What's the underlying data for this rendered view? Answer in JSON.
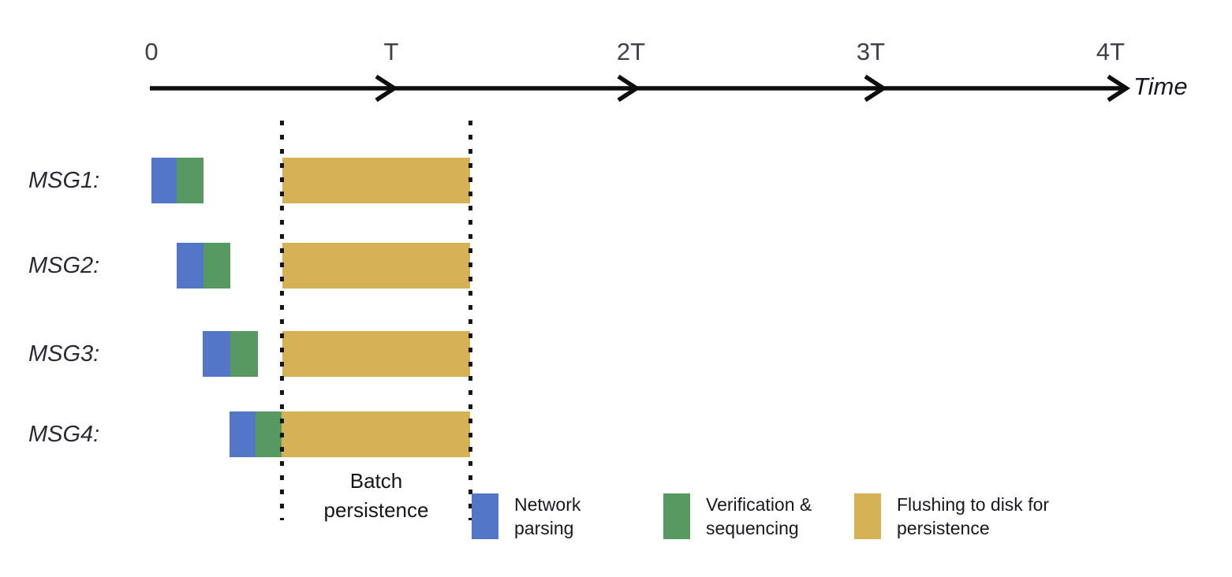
{
  "figure": {
    "title_meaning": "Batch persistence timing diagram for four messages",
    "time_axis": {
      "ticks": [
        "0",
        "T",
        "2T",
        "3T",
        "4T"
      ],
      "tick_values": [
        0,
        1,
        2,
        3,
        4
      ],
      "axis_label": "Time"
    },
    "rows": [
      {
        "label": "MSG1:",
        "segments": [
          {
            "phase": "network-parsing",
            "start": 0.0,
            "end": 0.105
          },
          {
            "phase": "verification-sequencing",
            "start": 0.105,
            "end": 0.217
          },
          {
            "phase": "flush-to-disk",
            "start": 0.546,
            "end": 1.329
          }
        ]
      },
      {
        "label": "MSG2:",
        "segments": [
          {
            "phase": "network-parsing",
            "start": 0.105,
            "end": 0.217
          },
          {
            "phase": "verification-sequencing",
            "start": 0.217,
            "end": 0.329
          },
          {
            "phase": "flush-to-disk",
            "start": 0.546,
            "end": 1.329
          }
        ]
      },
      {
        "label": "MSG3:",
        "segments": [
          {
            "phase": "network-parsing",
            "start": 0.214,
            "end": 0.329
          },
          {
            "phase": "verification-sequencing",
            "start": 0.329,
            "end": 0.444
          },
          {
            "phase": "flush-to-disk",
            "start": 0.546,
            "end": 1.329
          }
        ]
      },
      {
        "label": "MSG4:",
        "segments": [
          {
            "phase": "network-parsing",
            "start": 0.326,
            "end": 0.434
          },
          {
            "phase": "verification-sequencing",
            "start": 0.434,
            "end": 0.543
          },
          {
            "phase": "flush-to-disk",
            "start": 0.543,
            "end": 1.329
          }
        ]
      }
    ],
    "batch_window": {
      "start": 0.543,
      "end": 1.332,
      "label": "Batch\npersistence"
    },
    "legend": [
      {
        "name": "network-parsing",
        "color": "#5377C6",
        "label": "Network\nparsing"
      },
      {
        "name": "verification-sequencing",
        "color": "#569A61",
        "label": "Verification &\nsequencing"
      },
      {
        "name": "flush-to-disk",
        "color": "#D5B156",
        "label": "Flushing to disk for\npersistence"
      }
    ],
    "colors": {
      "axis": "#0d0d0d",
      "dotted_line": "#161616",
      "tick_text": "#3c4147",
      "label_text": "#272b31"
    }
  }
}
